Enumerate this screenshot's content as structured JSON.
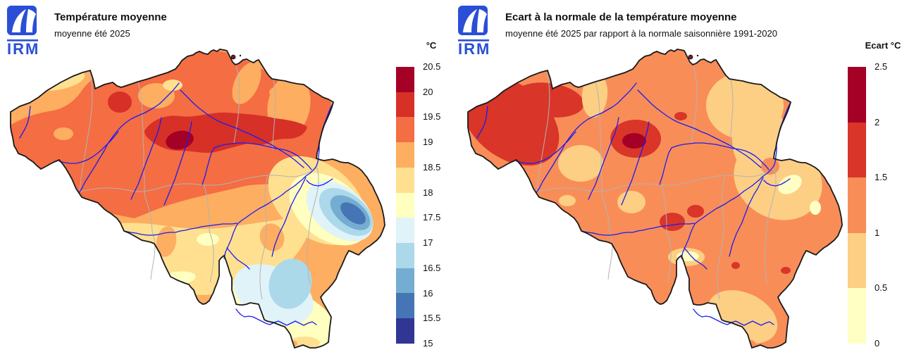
{
  "logo": {
    "text": "IRM",
    "color": "#2a4fd6"
  },
  "left_panel": {
    "title": "Température moyenne",
    "subtitle": "moyenne été 2025",
    "legend": {
      "title": "°C",
      "labels": [
        "20.5",
        "20",
        "19.5",
        "19",
        "18.5",
        "18",
        "17.5",
        "17",
        "16.5",
        "16",
        "15.5",
        "15"
      ],
      "colors": [
        "#a50026",
        "#d73027",
        "#f46d43",
        "#fdae61",
        "#fee090",
        "#ffffbf",
        "#e0f3f8",
        "#abd9e9",
        "#74add1",
        "#4575b4",
        "#313695"
      ]
    }
  },
  "right_panel": {
    "title": "Ecart à la normale de la température moyenne",
    "subtitle": "moyenne été 2025 par rapport à la normale saisonnière 1991-2020",
    "legend": {
      "title": "Ecart °C",
      "labels": [
        "2.5",
        "2",
        "1.5",
        "1",
        "0.5",
        "0"
      ],
      "colors": [
        "#a50026",
        "#d93529",
        "#f98d58",
        "#fccf85",
        "#ffffc3"
      ]
    }
  },
  "map": {
    "outline_color": "#1a1a1a",
    "river_color": "#1c1cf0",
    "province_border_color": "#b3b3b3",
    "exclave_fill": "#8b1420"
  }
}
